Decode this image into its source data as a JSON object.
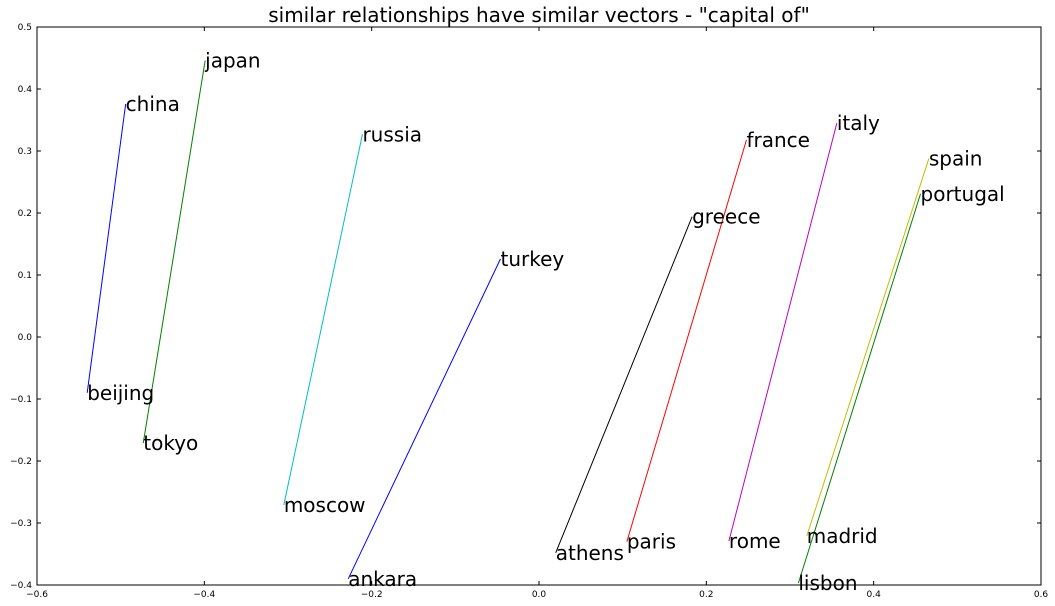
{
  "chart_data": {
    "type": "line",
    "title": "similar relationships have similar vectors - \"capital of\"",
    "xlabel": "",
    "ylabel": "",
    "xlim": [
      -0.6,
      0.6
    ],
    "ylim": [
      -0.4,
      0.5
    ],
    "xticks": [
      -0.6,
      -0.4,
      -0.2,
      0.0,
      0.2,
      0.4,
      0.6
    ],
    "xtick_labels": [
      "−0.6",
      "−0.4",
      "−0.2",
      "0.0",
      "0.2",
      "0.4",
      "0.6"
    ],
    "yticks": [
      -0.4,
      -0.3,
      -0.2,
      -0.1,
      0.0,
      0.1,
      0.2,
      0.3,
      0.4,
      0.5
    ],
    "ytick_labels": [
      "−0.4",
      "−0.3",
      "−0.2",
      "−0.1",
      "0.0",
      "0.1",
      "0.2",
      "0.3",
      "0.4",
      "0.5"
    ],
    "grid": false,
    "legend": false,
    "series": [
      {
        "color": "#0000ff",
        "points": [
          {
            "label": "beijing",
            "x": -0.54,
            "y": -0.09
          },
          {
            "label": "china",
            "x": -0.494,
            "y": 0.376
          }
        ]
      },
      {
        "color": "#008000",
        "points": [
          {
            "label": "tokyo",
            "x": -0.473,
            "y": -0.171
          },
          {
            "label": "japan",
            "x": -0.399,
            "y": 0.446
          }
        ]
      },
      {
        "color": "#00bfbf",
        "points": [
          {
            "label": "moscow",
            "x": -0.305,
            "y": -0.271
          },
          {
            "label": "russia",
            "x": -0.211,
            "y": 0.327
          }
        ]
      },
      {
        "color": "#0000ff",
        "points": [
          {
            "label": "ankara",
            "x": -0.228,
            "y": -0.39
          },
          {
            "label": "turkey",
            "x": -0.046,
            "y": 0.126
          }
        ]
      },
      {
        "color": "#000000",
        "points": [
          {
            "label": "athens",
            "x": 0.02,
            "y": -0.348
          },
          {
            "label": "greece",
            "x": 0.183,
            "y": 0.194
          }
        ]
      },
      {
        "color": "#ff0000",
        "points": [
          {
            "label": "paris",
            "x": 0.105,
            "y": -0.33
          },
          {
            "label": "france",
            "x": 0.248,
            "y": 0.318
          }
        ]
      },
      {
        "color": "#bf00bf",
        "points": [
          {
            "label": "rome",
            "x": 0.227,
            "y": -0.329
          },
          {
            "label": "italy",
            "x": 0.356,
            "y": 0.345
          }
        ]
      },
      {
        "color": "#bfbf00",
        "points": [
          {
            "label": "madrid",
            "x": 0.32,
            "y": -0.321
          },
          {
            "label": "spain",
            "x": 0.466,
            "y": 0.288
          }
        ]
      },
      {
        "color": "#008000",
        "points": [
          {
            "label": "lisbon",
            "x": 0.31,
            "y": -0.397
          },
          {
            "label": "portugal",
            "x": 0.456,
            "y": 0.231
          }
        ]
      }
    ]
  }
}
